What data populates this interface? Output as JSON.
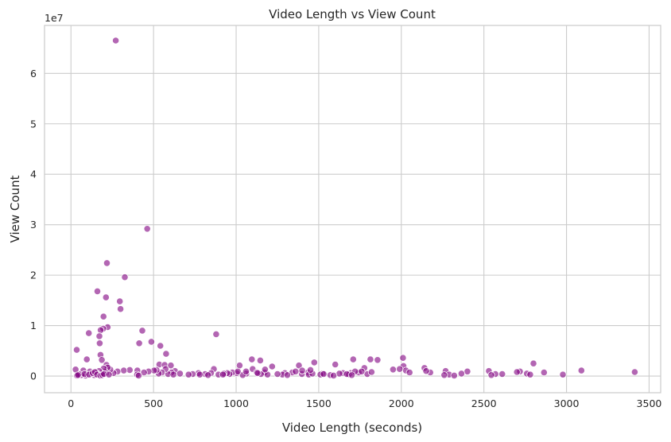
{
  "chart_data": {
    "type": "scatter",
    "title": "Video Length vs View Count",
    "xlabel": "Video Length (seconds)",
    "ylabel": "View Count",
    "y_offset_label": "1e7",
    "xlim": [
      -160,
      3570
    ],
    "ylim": [
      -3300000,
      69500000
    ],
    "xticks": [
      0,
      500,
      1000,
      1500,
      2000,
      2500,
      3000,
      3500
    ],
    "xtick_labels": [
      "0",
      "500",
      "1000",
      "1500",
      "2000",
      "2500",
      "3000",
      "3500"
    ],
    "yticks": [
      0,
      10000000,
      20000000,
      30000000,
      40000000,
      50000000,
      60000000
    ],
    "ytick_labels": [
      "0",
      "1",
      "2",
      "3",
      "4",
      "5",
      "6"
    ],
    "grid": true,
    "marker_color": "#800080",
    "marker_alpha": 0.6,
    "series": [
      {
        "points": [
          [
            271,
            66500000
          ],
          [
            462,
            29200000
          ],
          [
            218,
            22400000
          ],
          [
            326,
            19600000
          ],
          [
            160,
            16800000
          ],
          [
            212,
            15600000
          ],
          [
            296,
            14800000
          ],
          [
            300,
            13300000
          ],
          [
            197,
            11800000
          ],
          [
            222,
            9700000
          ],
          [
            195,
            9400000
          ],
          [
            180,
            9100000
          ],
          [
            108,
            8500000
          ],
          [
            432,
            9000000
          ],
          [
            879,
            8300000
          ],
          [
            172,
            7900000
          ],
          [
            174,
            6500000
          ],
          [
            413,
            6500000
          ],
          [
            487,
            6800000
          ],
          [
            541,
            6000000
          ],
          [
            35,
            5200000
          ],
          [
            576,
            4400000
          ],
          [
            179,
            4200000
          ],
          [
            187,
            3200000
          ],
          [
            96,
            3300000
          ],
          [
            1709,
            3300000
          ],
          [
            1813,
            3300000
          ],
          [
            1856,
            3200000
          ],
          [
            1095,
            3300000
          ],
          [
            1146,
            3100000
          ],
          [
            2010,
            3600000
          ],
          [
            1473,
            2700000
          ],
          [
            2800,
            2500000
          ],
          [
            535,
            2300000
          ],
          [
            1600,
            2300000
          ],
          [
            567,
            2200000
          ],
          [
            605,
            2100000
          ],
          [
            215,
            2200000
          ],
          [
            1021,
            2100000
          ],
          [
            1380,
            2100000
          ],
          [
            2013,
            2000000
          ],
          [
            1218,
            1900000
          ],
          [
            2140,
            1600000
          ],
          [
            2028,
            1100000
          ],
          [
            1776,
            1600000
          ],
          [
            1950,
            1300000
          ],
          [
            1100,
            1400000
          ],
          [
            865,
            1400000
          ],
          [
            3090,
            1100000
          ],
          [
            3413,
            800000
          ],
          [
            2718,
            900000
          ],
          [
            2530,
            1000000
          ],
          [
            2864,
            700000
          ],
          [
            2978,
            300000
          ],
          [
            2400,
            900000
          ],
          [
            2570,
            400000
          ],
          [
            2611,
            400000
          ],
          [
            2268,
            1000000
          ],
          [
            2364,
            500000
          ],
          [
            2290,
            300000
          ],
          [
            2175,
            700000
          ],
          [
            2150,
            1000000
          ],
          [
            1742,
            700000
          ],
          [
            1694,
            600000
          ],
          [
            1647,
            600000
          ],
          [
            1625,
            500000
          ],
          [
            1523,
            500000
          ],
          [
            1510,
            300000
          ],
          [
            1435,
            700000
          ],
          [
            1398,
            400000
          ],
          [
            1340,
            700000
          ],
          [
            1295,
            600000
          ],
          [
            1280,
            300000
          ],
          [
            1172,
            700000
          ],
          [
            1150,
            400000
          ],
          [
            1124,
            700000
          ],
          [
            1062,
            500000
          ],
          [
            1004,
            600000
          ],
          [
            977,
            700000
          ],
          [
            960,
            400000
          ],
          [
            946,
            600000
          ],
          [
            925,
            500000
          ],
          [
            893,
            300000
          ],
          [
            848,
            600000
          ],
          [
            812,
            400000
          ],
          [
            772,
            600000
          ],
          [
            737,
            400000
          ],
          [
            712,
            300000
          ],
          [
            630,
            1000000
          ],
          [
            608,
            700000
          ],
          [
            588,
            400000
          ],
          [
            573,
            1400000
          ],
          [
            550,
            700000
          ],
          [
            531,
            500000
          ],
          [
            518,
            1200000
          ],
          [
            503,
            1100000
          ],
          [
            470,
            900000
          ],
          [
            442,
            700000
          ],
          [
            402,
            1100000
          ],
          [
            356,
            1200000
          ],
          [
            320,
            1100000
          ],
          [
            282,
            900000
          ],
          [
            258,
            600000
          ],
          [
            238,
            1300000
          ],
          [
            222,
            1700000
          ],
          [
            213,
            600000
          ],
          [
            205,
            900000
          ],
          [
            198,
            1500000
          ],
          [
            185,
            600000
          ],
          [
            170,
            1000000
          ],
          [
            163,
            400000
          ],
          [
            150,
            700000
          ],
          [
            140,
            200000
          ],
          [
            128,
            500000
          ],
          [
            115,
            900000
          ],
          [
            99,
            300000
          ],
          [
            88,
            100000
          ],
          [
            75,
            1100000
          ],
          [
            63,
            200000
          ],
          [
            49,
            400000
          ],
          [
            36,
            100000
          ],
          [
            28,
            1300000
          ],
          [
            42,
            200000
          ],
          [
            82,
            400000
          ],
          [
            110,
            300000
          ],
          [
            132,
            600000
          ],
          [
            145,
            800000
          ],
          [
            158,
            300000
          ],
          [
            178,
            100000
          ],
          [
            190,
            200000
          ],
          [
            200,
            400000
          ],
          [
            230,
            300000
          ],
          [
            400,
            300000
          ],
          [
            410,
            100000
          ],
          [
            1190,
            300000
          ],
          [
            1310,
            200000
          ],
          [
            1440,
            300000
          ],
          [
            1462,
            500000
          ],
          [
            1682,
            300000
          ],
          [
            1794,
            400000
          ],
          [
            1820,
            800000
          ],
          [
            2260,
            200000
          ],
          [
            2320,
            100000
          ],
          [
            2545,
            200000
          ],
          [
            2760,
            500000
          ],
          [
            2700,
            800000
          ],
          [
            2780,
            300000
          ],
          [
            1990,
            1400000
          ],
          [
            1040,
            200000
          ],
          [
            1060,
            900000
          ],
          [
            920,
            300000
          ],
          [
            1130,
            600000
          ],
          [
            1360,
            900000
          ],
          [
            1570,
            200000
          ],
          [
            1720,
            900000
          ],
          [
            1760,
            900000
          ],
          [
            2050,
            700000
          ],
          [
            1250,
            400000
          ],
          [
            1400,
            1100000
          ],
          [
            1450,
            1200000
          ],
          [
            1530,
            400000
          ],
          [
            1670,
            400000
          ],
          [
            1590,
            100000
          ],
          [
            620,
            300000
          ],
          [
            660,
            500000
          ],
          [
            780,
            300000
          ],
          [
            830,
            200000
          ],
          [
            1010,
            900000
          ],
          [
            1175,
            1300000
          ],
          [
            1700,
            200000
          ]
        ]
      }
    ]
  }
}
